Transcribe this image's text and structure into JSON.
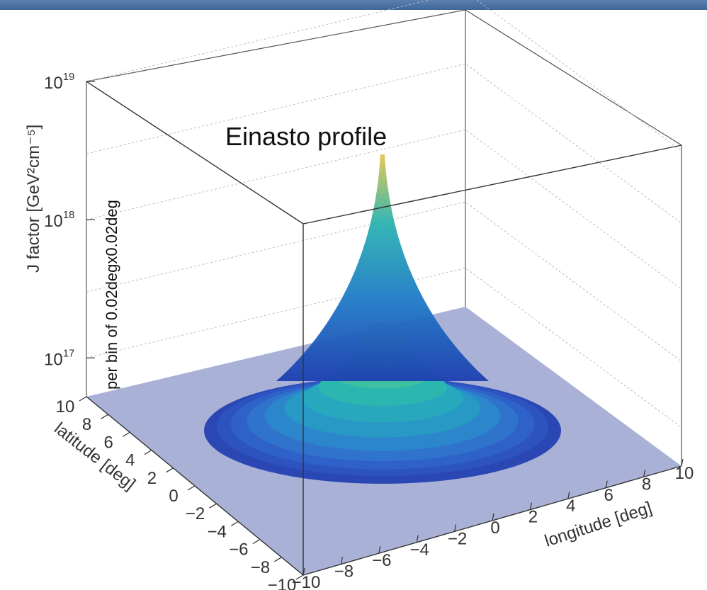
{
  "chart_data": {
    "type": "surface-3d",
    "title": "Einasto profile",
    "xlabel": "longitude [deg]",
    "ylabel": "latitude [deg]",
    "zlabel": "J factor [GeV²cm⁻⁵]",
    "zlabel2": "per bin of 0.02degx0.02deg",
    "x_ticks": [
      "−10",
      "−8",
      "−6",
      "−4",
      "−2",
      "0",
      "2",
      "4",
      "6",
      "8",
      "10"
    ],
    "y_ticks": [
      "−10",
      "−8",
      "−6",
      "−4",
      "−2",
      "0",
      "2",
      "4",
      "6",
      "8",
      "10"
    ],
    "z_ticks": [
      {
        "base": "10",
        "exp": "17",
        "value": 1e+17
      },
      {
        "base": "10",
        "exp": "18",
        "value": 1e+18
      },
      {
        "base": "10",
        "exp": "19",
        "value": 1e+19
      }
    ],
    "xlim": [
      -10,
      10
    ],
    "ylim": [
      -10,
      10
    ],
    "zscale": "log",
    "peak_value": 3e+18,
    "base_radius_deg": 5,
    "colors": {
      "base_plane": "#a9b1d6",
      "surface_low": "#1e3fb0",
      "surface_mid": "#1f9bbf",
      "surface_high": "#d8c050",
      "grid": "#bbbbbb"
    }
  }
}
